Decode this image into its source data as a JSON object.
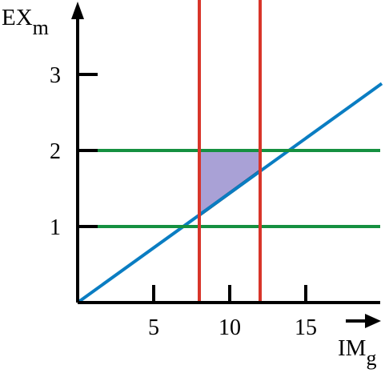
{
  "chart_data": {
    "type": "line",
    "xlabel": "IM",
    "xlabel_sub": "g",
    "ylabel": "EX",
    "ylabel_sub": "m",
    "xlim": [
      0,
      20
    ],
    "ylim": [
      0,
      3.6
    ],
    "x_ticks": [
      5,
      10,
      15
    ],
    "x_tick_labels": [
      "5",
      "10",
      "15"
    ],
    "y_ticks": [
      1,
      2,
      3
    ],
    "y_tick_labels": [
      "1",
      "2",
      "3"
    ],
    "grid": false,
    "colors": {
      "diagonal": "#0a7dc2",
      "horizontal": "#159040",
      "vertical": "#d8352a",
      "region_fill": "#a9a1d6",
      "axis": "#000000"
    },
    "series": [
      {
        "kind": "line",
        "x": [
          0,
          20
        ],
        "y": [
          0,
          2.88
        ]
      },
      {
        "kind": "hline",
        "y": 1
      },
      {
        "kind": "hline",
        "y": 2
      },
      {
        "kind": "vline",
        "x": 8
      },
      {
        "kind": "vline",
        "x": 12
      }
    ],
    "shaded_region": {
      "points": [
        [
          8,
          2
        ],
        [
          12,
          2
        ],
        [
          12,
          1.73
        ],
        [
          8,
          1.15
        ]
      ]
    }
  }
}
